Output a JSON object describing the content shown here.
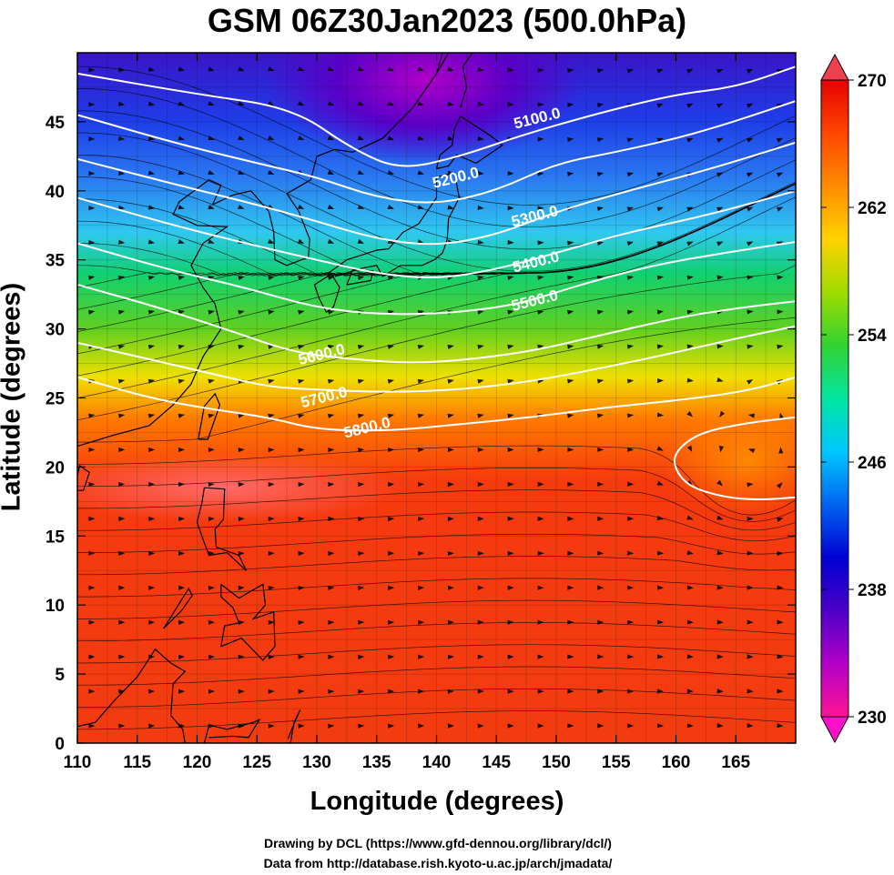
{
  "title": "GSM 06Z30Jan2023 (500.0hPa)",
  "xlabel": "Longitude (degrees)",
  "ylabel": "Latitude  (degrees)",
  "credits": {
    "line1": "Drawing by DCL (https://www.gfd-dennou.org/library/dcl/)",
    "line2": "Data from http://database.rish.kyoto-u.ac.jp/arch/jmadata/"
  },
  "map": {
    "x_range": [
      110,
      170
    ],
    "y_range": [
      0,
      50
    ],
    "x_ticks": [
      110,
      115,
      120,
      125,
      130,
      135,
      140,
      145,
      150,
      155,
      160,
      165
    ],
    "y_ticks": [
      0,
      5,
      10,
      15,
      20,
      25,
      30,
      35,
      40,
      45
    ],
    "contours": [
      {
        "label": "5100.0",
        "pts": [
          [
            110,
            48.5
          ],
          [
            120,
            47
          ],
          [
            128,
            46
          ],
          [
            133,
            43
          ],
          [
            137,
            41.5
          ],
          [
            142,
            42.5
          ],
          [
            147,
            44
          ],
          [
            153,
            45.5
          ],
          [
            160,
            47
          ],
          [
            165,
            47.5
          ],
          [
            170,
            49
          ]
        ]
      },
      {
        "label": "5200.0",
        "pts": [
          [
            110,
            45.5
          ],
          [
            118,
            43.5
          ],
          [
            125,
            42
          ],
          [
            130,
            41
          ],
          [
            135,
            39.5
          ],
          [
            140,
            39
          ],
          [
            145,
            40
          ],
          [
            150,
            42
          ],
          [
            155,
            42.8
          ],
          [
            162,
            44.2
          ],
          [
            170,
            46.5
          ]
        ]
      },
      {
        "label": "5300.0",
        "pts": [
          [
            110,
            42.3
          ],
          [
            118,
            40.5
          ],
          [
            125,
            39
          ],
          [
            130,
            37.8
          ],
          [
            135,
            36.5
          ],
          [
            140,
            36
          ],
          [
            145,
            36.8
          ],
          [
            150,
            38.5
          ],
          [
            156,
            40
          ],
          [
            163,
            41.6
          ],
          [
            170,
            43.5
          ]
        ]
      },
      {
        "label": "5400.0",
        "pts": [
          [
            110,
            39.5
          ],
          [
            118,
            37.5
          ],
          [
            125,
            36
          ],
          [
            130,
            35
          ],
          [
            135,
            34
          ],
          [
            140,
            33.6
          ],
          [
            145,
            34.3
          ],
          [
            150,
            35.5
          ],
          [
            156,
            37
          ],
          [
            163,
            38.3
          ],
          [
            170,
            40
          ]
        ]
      },
      {
        "label": "5500.0",
        "pts": [
          [
            110,
            36.2
          ],
          [
            118,
            34.2
          ],
          [
            124,
            33
          ],
          [
            130,
            31.5
          ],
          [
            136,
            31
          ],
          [
            142,
            31.2
          ],
          [
            147,
            31.8
          ],
          [
            152,
            33.2
          ],
          [
            158,
            34.6
          ],
          [
            164,
            35.5
          ],
          [
            170,
            36.3
          ]
        ]
      },
      {
        "label": "5600.0",
        "pts": [
          [
            110,
            33.2
          ],
          [
            117,
            31.5
          ],
          [
            123,
            29.8
          ],
          [
            128,
            28.3
          ],
          [
            133,
            27.8
          ],
          [
            138,
            27.5
          ],
          [
            143,
            27.8
          ],
          [
            148,
            28.4
          ],
          [
            153,
            29.4
          ],
          [
            160,
            30.8
          ],
          [
            165,
            31.5
          ],
          [
            170,
            32
          ]
        ]
      },
      {
        "label": "5700.0",
        "pts": [
          [
            110,
            29
          ],
          [
            117,
            27.6
          ],
          [
            122,
            26.6
          ],
          [
            126,
            25.8
          ],
          [
            130,
            25.6
          ],
          [
            136,
            25.4
          ],
          [
            142,
            25.6
          ],
          [
            148,
            26.2
          ],
          [
            154,
            27.2
          ],
          [
            160,
            28.3
          ],
          [
            165,
            29.3
          ],
          [
            170,
            30.2
          ]
        ]
      },
      {
        "label": "5800.0",
        "pts": [
          [
            110,
            26.5
          ],
          [
            116,
            25
          ],
          [
            121,
            24.2
          ],
          [
            126,
            23.6
          ],
          [
            130,
            22.7
          ],
          [
            136,
            22.6
          ],
          [
            142,
            23.1
          ],
          [
            148,
            23.6
          ],
          [
            154,
            24.3
          ],
          [
            160,
            24.8
          ],
          [
            166,
            25.5
          ],
          [
            170,
            26.5
          ]
        ]
      },
      {
        "label": "",
        "pts": [
          [
            170,
            23.6
          ],
          [
            166,
            23.2
          ],
          [
            162,
            22.5
          ],
          [
            160,
            21.2
          ],
          [
            159.8,
            20
          ],
          [
            161,
            18.6
          ],
          [
            164,
            17.8
          ],
          [
            167,
            17.6
          ],
          [
            170,
            17.8
          ]
        ]
      }
    ],
    "contour_labels": [
      {
        "text": "5100.0",
        "lon": 148.5,
        "lat": 44.9
      },
      {
        "text": "5200.0",
        "lon": 141.7,
        "lat": 40.6
      },
      {
        "text": "5300.0",
        "lon": 148.3,
        "lat": 37.8
      },
      {
        "text": "5400.0",
        "lon": 148.4,
        "lat": 34.5
      },
      {
        "text": "5500.0",
        "lon": 148.3,
        "lat": 31.7
      },
      {
        "text": "5600.0",
        "lon": 130.5,
        "lat": 27.8
      },
      {
        "text": "5700.0",
        "lon": 130.7,
        "lat": 24.7
      },
      {
        "text": "5800.0",
        "lon": 134.3,
        "lat": 22.5
      }
    ]
  },
  "colorbar": {
    "min": 230,
    "max": 270,
    "tick_labels": [
      "270",
      "262",
      "254",
      "246",
      "238",
      "230"
    ],
    "tick_values": [
      270,
      262,
      254,
      246,
      238,
      230
    ],
    "stops": [
      "#ff1493",
      "#b400c8",
      "#4b00c8",
      "#0000d2",
      "#0064f0",
      "#00c8ff",
      "#00e6a0",
      "#32d232",
      "#a0dc00",
      "#ffd200",
      "#ff8c00",
      "#ff4600",
      "#e60000"
    ]
  }
}
